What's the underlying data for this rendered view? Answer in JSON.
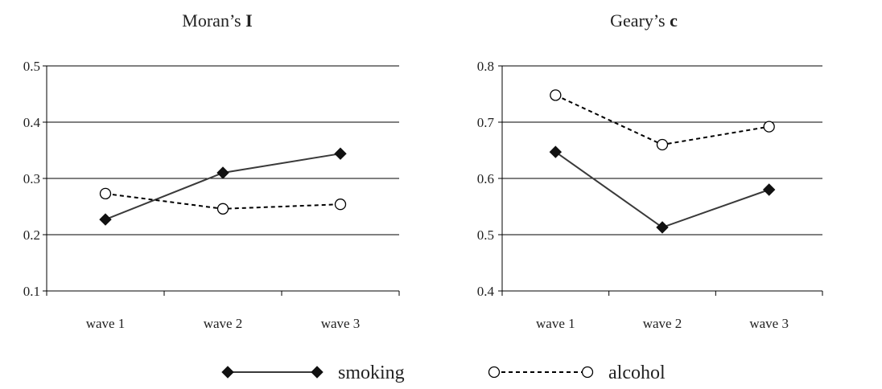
{
  "chart_data": [
    {
      "type": "line",
      "title": "Moran’s",
      "title_bold": "I",
      "categories": [
        "wave 1",
        "wave 2",
        "wave 3"
      ],
      "ylim": [
        0.1,
        0.5
      ],
      "yticks": [
        "0.1",
        "0.2",
        "0.3",
        "0.4",
        "0.5"
      ],
      "grid": "horizontal",
      "series": [
        {
          "name": "smoking",
          "values": [
            0.227,
            0.31,
            0.344
          ]
        },
        {
          "name": "alcohol",
          "values": [
            0.273,
            0.246,
            0.254
          ]
        }
      ]
    },
    {
      "type": "line",
      "title": "Geary’s",
      "title_bold": "c",
      "categories": [
        "wave 1",
        "wave 2",
        "wave 3"
      ],
      "ylim": [
        0.4,
        0.8
      ],
      "yticks": [
        "0.4",
        "0.5",
        "0.6",
        "0.7",
        "0.8"
      ],
      "grid": "horizontal",
      "series": [
        {
          "name": "smoking",
          "values": [
            0.647,
            0.513,
            0.58
          ]
        },
        {
          "name": "alcohol",
          "values": [
            0.748,
            0.66,
            0.692
          ]
        }
      ]
    }
  ],
  "legend": {
    "placement": "bottom-center",
    "items": [
      {
        "name": "smoking",
        "marker": "filled-diamond",
        "line": "solid",
        "color": "#3a3a3a"
      },
      {
        "name": "alcohol",
        "marker": "open-circle",
        "line": "dashed",
        "color": "#000000"
      }
    ]
  }
}
